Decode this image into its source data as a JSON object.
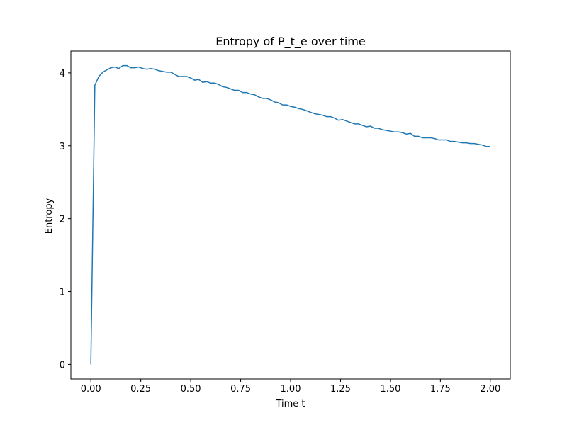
{
  "chart_data": {
    "type": "line",
    "title": "Entropy of P_t_e over time",
    "xlabel": "Time t",
    "ylabel": "Entropy",
    "xlim": [
      -0.1,
      2.1
    ],
    "ylim": [
      -0.2,
      4.3
    ],
    "xticks": [
      0.0,
      0.25,
      0.5,
      0.75,
      1.0,
      1.25,
      1.5,
      1.75,
      2.0
    ],
    "xtick_labels": [
      "0.00",
      "0.25",
      "0.50",
      "0.75",
      "1.00",
      "1.25",
      "1.50",
      "1.75",
      "2.00"
    ],
    "yticks": [
      0,
      1,
      2,
      3,
      4
    ],
    "ytick_labels": [
      "0",
      "1",
      "2",
      "3",
      "4"
    ],
    "grid": false,
    "color": "#1f77b4",
    "series": [
      {
        "x": [
          0.0,
          0.02,
          0.04,
          0.06,
          0.08,
          0.1,
          0.12,
          0.14,
          0.16,
          0.18,
          0.2,
          0.22,
          0.24,
          0.26,
          0.28,
          0.3,
          0.32,
          0.34,
          0.36,
          0.38,
          0.4,
          0.42,
          0.44,
          0.46,
          0.48,
          0.5,
          0.52,
          0.54,
          0.56,
          0.58,
          0.6,
          0.62,
          0.64,
          0.66,
          0.68,
          0.7,
          0.72,
          0.74,
          0.76,
          0.78,
          0.8,
          0.82,
          0.84,
          0.86,
          0.88,
          0.9,
          0.92,
          0.94,
          0.96,
          0.98,
          1.0,
          1.02,
          1.04,
          1.06,
          1.08,
          1.1,
          1.12,
          1.14,
          1.16,
          1.18,
          1.2,
          1.22,
          1.24,
          1.26,
          1.28,
          1.3,
          1.32,
          1.34,
          1.36,
          1.38,
          1.4,
          1.42,
          1.44,
          1.46,
          1.48,
          1.5,
          1.52,
          1.54,
          1.56,
          1.58,
          1.6,
          1.62,
          1.64,
          1.66,
          1.68,
          1.7,
          1.72,
          1.74,
          1.76,
          1.78,
          1.8,
          1.82,
          1.84,
          1.86,
          1.88,
          1.9,
          1.92,
          1.94,
          1.96,
          1.98,
          2.0
        ],
        "y": [
          0.0,
          3.83,
          3.95,
          4.01,
          4.04,
          4.07,
          4.08,
          4.06,
          4.1,
          4.1,
          4.07,
          4.07,
          4.08,
          4.06,
          4.05,
          4.06,
          4.05,
          4.03,
          4.02,
          4.01,
          4.01,
          3.98,
          3.95,
          3.95,
          3.95,
          3.93,
          3.9,
          3.91,
          3.87,
          3.88,
          3.86,
          3.86,
          3.84,
          3.81,
          3.8,
          3.78,
          3.76,
          3.76,
          3.73,
          3.73,
          3.71,
          3.7,
          3.67,
          3.65,
          3.65,
          3.63,
          3.6,
          3.59,
          3.56,
          3.56,
          3.54,
          3.53,
          3.51,
          3.5,
          3.48,
          3.46,
          3.44,
          3.43,
          3.42,
          3.4,
          3.4,
          3.38,
          3.35,
          3.36,
          3.34,
          3.32,
          3.3,
          3.3,
          3.28,
          3.26,
          3.27,
          3.24,
          3.24,
          3.22,
          3.21,
          3.2,
          3.19,
          3.19,
          3.18,
          3.16,
          3.17,
          3.13,
          3.13,
          3.11,
          3.11,
          3.11,
          3.1,
          3.08,
          3.08,
          3.08,
          3.06,
          3.06,
          3.05,
          3.04,
          3.04,
          3.03,
          3.03,
          3.02,
          3.01,
          2.99,
          2.99
        ]
      }
    ]
  }
}
